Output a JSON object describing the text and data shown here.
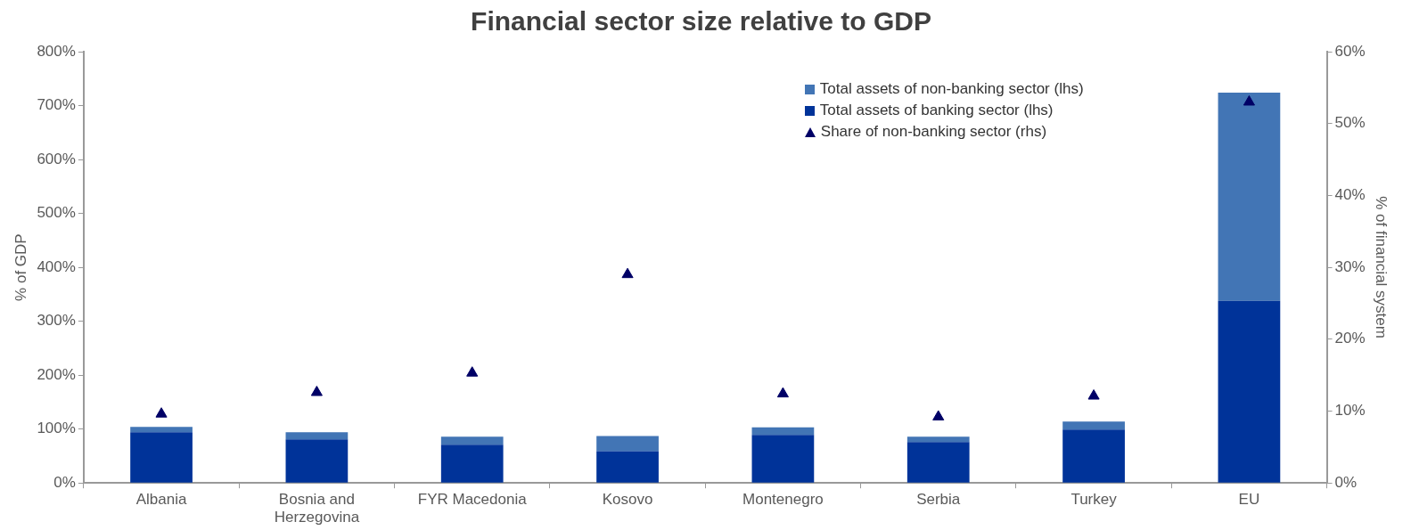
{
  "chart_data": {
    "type": "bar",
    "title": "Financial sector size relative to GDP",
    "ylabel": "% of GDP",
    "y2label": "% of financial system",
    "categories": [
      "Albania",
      "Bosnia and Herzegovina",
      "FYR Macedonia",
      "Kosovo",
      "Montenegro",
      "Serbia",
      "Turkey",
      "EU"
    ],
    "stacked": true,
    "series": [
      {
        "name": "Total assets of banking sector (lhs)",
        "color": "#003399",
        "values": [
          94,
          81,
          71,
          59,
          89,
          76,
          99,
          338
        ]
      },
      {
        "name": "Total assets of non-banking sector (lhs)",
        "color": "#4275b5",
        "values": [
          10,
          13,
          15,
          28,
          14,
          10,
          15,
          386
        ]
      },
      {
        "name": "Share of non-banking sector (rhs)",
        "type": "scatter",
        "axis": "y2",
        "marker": "triangle",
        "color": "#000066",
        "x": [
          "Albania",
          "Bosnia and Herzegovina",
          "FYR Macedonia",
          "Kosovo",
          "Montenegro",
          "Serbia",
          "Turkey",
          "EU"
        ],
        "values": [
          9.6,
          12.6,
          15.3,
          29,
          12.4,
          9.2,
          12.1,
          53
        ]
      }
    ],
    "ylim": [
      0,
      800
    ],
    "yticks": [
      {
        "value": 0,
        "label": "0%"
      },
      {
        "value": 100,
        "label": "100%"
      },
      {
        "value": 200,
        "label": "200%"
      },
      {
        "value": 300,
        "label": "300%"
      },
      {
        "value": 400,
        "label": "400%"
      },
      {
        "value": 500,
        "label": "500%"
      },
      {
        "value": 600,
        "label": "600%"
      },
      {
        "value": 700,
        "label": "700%"
      },
      {
        "value": 800,
        "label": "800%"
      }
    ],
    "y2lim": [
      0,
      60
    ],
    "y2ticks": [
      {
        "value": 0,
        "label": "0%"
      },
      {
        "value": 10,
        "label": "10%"
      },
      {
        "value": 20,
        "label": "20%"
      },
      {
        "value": 30,
        "label": "30%"
      },
      {
        "value": 40,
        "label": "40%"
      },
      {
        "value": 50,
        "label": "50%"
      },
      {
        "value": 60,
        "label": "60%"
      }
    ],
    "grid": false,
    "legend": "top right"
  }
}
